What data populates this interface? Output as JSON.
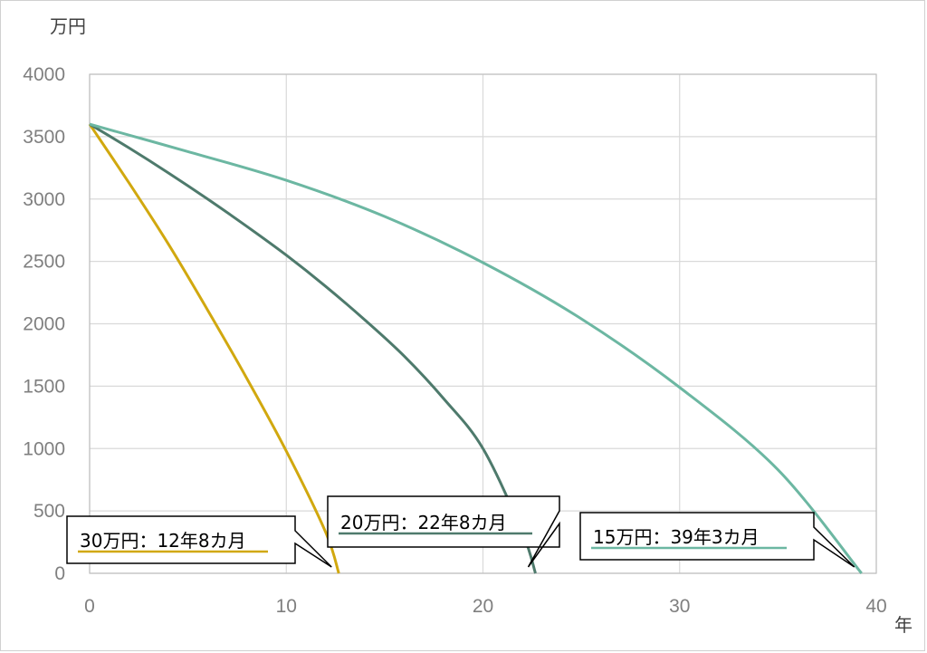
{
  "chart_data": {
    "type": "line",
    "title": "",
    "y_unit": "万円",
    "x_unit": "年",
    "xlim": [
      0,
      40
    ],
    "ylim": [
      0,
      4000
    ],
    "x_ticks": [
      0,
      10,
      20,
      30,
      40
    ],
    "y_ticks": [
      0,
      500,
      1000,
      1500,
      2000,
      2500,
      3000,
      3500,
      4000
    ],
    "grid": true,
    "series": [
      {
        "color": "#d1a80f",
        "x": [
          0,
          2,
          4,
          6,
          8,
          10,
          12,
          12.67
        ],
        "values": [
          3600,
          3130,
          2640,
          2110,
          1560,
          980,
          330,
          0
        ]
      },
      {
        "color": "#4e7a6c",
        "x": [
          0,
          2,
          4,
          6,
          8,
          10,
          12,
          14,
          16,
          18,
          20,
          22,
          22.67
        ],
        "values": [
          3600,
          3410,
          3210,
          3000,
          2780,
          2550,
          2300,
          2030,
          1740,
          1400,
          1000,
          330,
          0
        ]
      },
      {
        "color": "#6cb7a2",
        "x": [
          0,
          5,
          10,
          15,
          20,
          25,
          30,
          35,
          39.25
        ],
        "values": [
          3600,
          3380,
          3150,
          2860,
          2490,
          2040,
          1490,
          830,
          0
        ]
      }
    ],
    "annotations": [
      {
        "text": "30万円：12年8カ月",
        "color": "#d1a80f",
        "point_x": 12.67,
        "point_y": 0
      },
      {
        "text": "20万円：22年8カ月",
        "color": "#4e7a6c",
        "point_x": 22.67,
        "point_y": 0
      },
      {
        "text": "15万円：39年3カ月",
        "color": "#6cb7a2",
        "point_x": 39.25,
        "point_y": 0
      }
    ]
  }
}
